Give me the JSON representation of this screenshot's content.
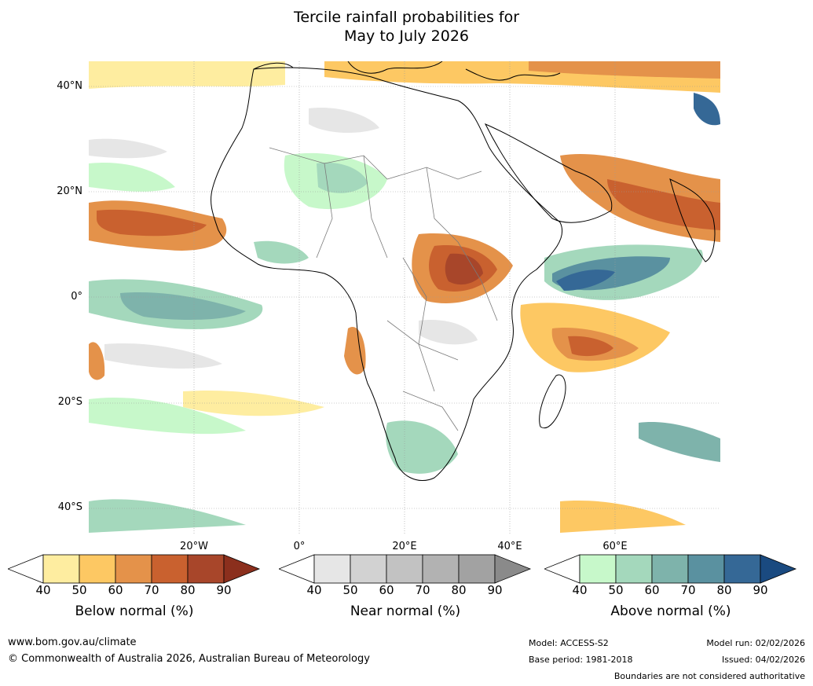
{
  "title": {
    "line1": "Tercile rainfall probabilities for",
    "line2": "May to July 2026"
  },
  "map": {
    "lat_labels": [
      "40°N",
      "20°N",
      "0°",
      "20°S",
      "40°S"
    ],
    "lon_labels": [
      "20°W",
      "0°",
      "20°E",
      "40°E",
      "60°E"
    ],
    "colors": {
      "ocean_bg": "#ffffff",
      "grid": "#9a9a9a",
      "coast": "#000000",
      "borders": "#7a7a7a"
    }
  },
  "colorbars": [
    {
      "label": "Below normal (%)",
      "ticks": [
        "40",
        "50",
        "60",
        "70",
        "80",
        "90"
      ],
      "colors": [
        "#ffffff",
        "#feeda0",
        "#fdc863",
        "#e4924a",
        "#c9612f",
        "#a8462a",
        "#8b2f1d"
      ]
    },
    {
      "label": "Near normal (%)",
      "ticks": [
        "40",
        "50",
        "60",
        "70",
        "80",
        "90"
      ],
      "colors": [
        "#ffffff",
        "#e6e6e6",
        "#d2d2d2",
        "#c2c2c2",
        "#b2b2b2",
        "#a2a2a2",
        "#8a8a8a"
      ]
    },
    {
      "label": "Above normal (%)",
      "ticks": [
        "40",
        "50",
        "60",
        "70",
        "80",
        "90"
      ],
      "colors": [
        "#ffffff",
        "#c7f8ca",
        "#a4d8bc",
        "#7eb3ab",
        "#5a91a0",
        "#356896",
        "#1a4a80"
      ]
    }
  ],
  "footer": {
    "website": "www.bom.gov.au/climate",
    "copyright": "© Commonwealth of Australia 2026, Australian Bureau of Meteorology",
    "model": "Model: ACCESS-S2",
    "base_period": "Base period: 1981-2018",
    "model_run": "Model run: 02/02/2026",
    "issued": "Issued: 04/02/2026",
    "disclaimer": "Boundaries are not considered authoritative"
  }
}
